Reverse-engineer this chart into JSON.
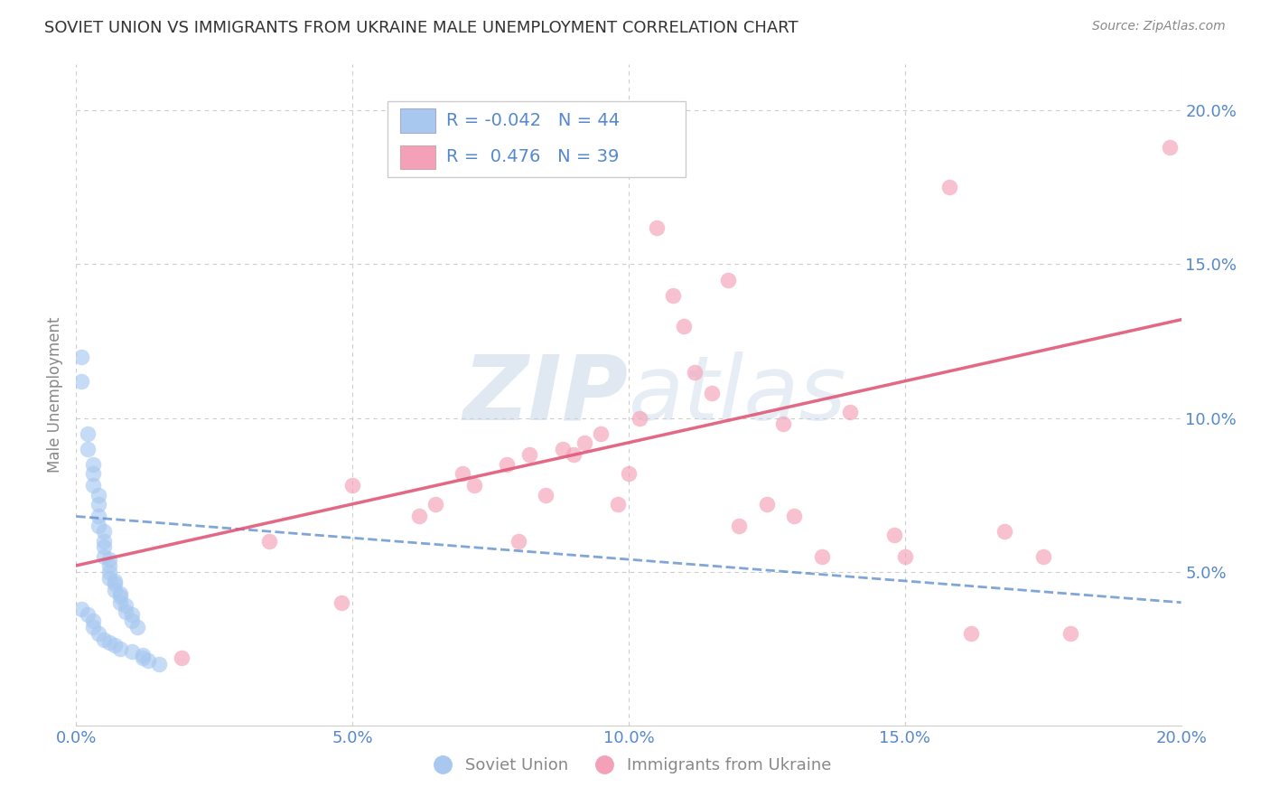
{
  "title": "SOVIET UNION VS IMMIGRANTS FROM UKRAINE MALE UNEMPLOYMENT CORRELATION CHART",
  "source": "Source: ZipAtlas.com",
  "ylabel": "Male Unemployment",
  "watermark": "ZIPatlas",
  "blue_color": "#a8c8f0",
  "pink_color": "#f4a0b8",
  "blue_line_color": "#5588cc",
  "pink_line_color": "#e05878",
  "blue_scatter_x": [
    0.001,
    0.001,
    0.002,
    0.002,
    0.003,
    0.003,
    0.003,
    0.004,
    0.004,
    0.004,
    0.004,
    0.005,
    0.005,
    0.005,
    0.005,
    0.006,
    0.006,
    0.006,
    0.006,
    0.007,
    0.007,
    0.007,
    0.008,
    0.008,
    0.008,
    0.009,
    0.009,
    0.01,
    0.01,
    0.011,
    0.001,
    0.002,
    0.003,
    0.003,
    0.004,
    0.005,
    0.006,
    0.007,
    0.008,
    0.01,
    0.012,
    0.012,
    0.013,
    0.015
  ],
  "blue_scatter_y": [
    0.12,
    0.112,
    0.095,
    0.09,
    0.085,
    0.082,
    0.078,
    0.075,
    0.072,
    0.068,
    0.065,
    0.063,
    0.06,
    0.058,
    0.055,
    0.054,
    0.052,
    0.05,
    0.048,
    0.047,
    0.046,
    0.044,
    0.043,
    0.042,
    0.04,
    0.039,
    0.037,
    0.036,
    0.034,
    0.032,
    0.038,
    0.036,
    0.034,
    0.032,
    0.03,
    0.028,
    0.027,
    0.026,
    0.025,
    0.024,
    0.023,
    0.022,
    0.021,
    0.02
  ],
  "pink_scatter_x": [
    0.019,
    0.035,
    0.048,
    0.05,
    0.062,
    0.065,
    0.07,
    0.072,
    0.078,
    0.08,
    0.082,
    0.085,
    0.088,
    0.09,
    0.092,
    0.095,
    0.098,
    0.1,
    0.102,
    0.105,
    0.108,
    0.11,
    0.112,
    0.115,
    0.118,
    0.12,
    0.125,
    0.128,
    0.13,
    0.135,
    0.14,
    0.148,
    0.15,
    0.158,
    0.162,
    0.168,
    0.175,
    0.18,
    0.198
  ],
  "pink_scatter_y": [
    0.022,
    0.06,
    0.04,
    0.078,
    0.068,
    0.072,
    0.082,
    0.078,
    0.085,
    0.06,
    0.088,
    0.075,
    0.09,
    0.088,
    0.092,
    0.095,
    0.072,
    0.082,
    0.1,
    0.162,
    0.14,
    0.13,
    0.115,
    0.108,
    0.145,
    0.065,
    0.072,
    0.098,
    0.068,
    0.055,
    0.102,
    0.062,
    0.055,
    0.175,
    0.03,
    0.063,
    0.055,
    0.03,
    0.188
  ],
  "xlim": [
    0.0,
    0.2
  ],
  "ylim": [
    0.0,
    0.215
  ],
  "xticks": [
    0.0,
    0.05,
    0.1,
    0.15,
    0.2
  ],
  "yticks": [
    0.05,
    0.1,
    0.15,
    0.2
  ],
  "xticklabels": [
    "0.0%",
    "5.0%",
    "10.0%",
    "15.0%",
    "20.0%"
  ],
  "yticklabels": [
    "5.0%",
    "10.0%",
    "15.0%",
    "20.0%"
  ],
  "background": "#ffffff",
  "tick_color": "#5588cc",
  "grid_color": "#cccccc"
}
